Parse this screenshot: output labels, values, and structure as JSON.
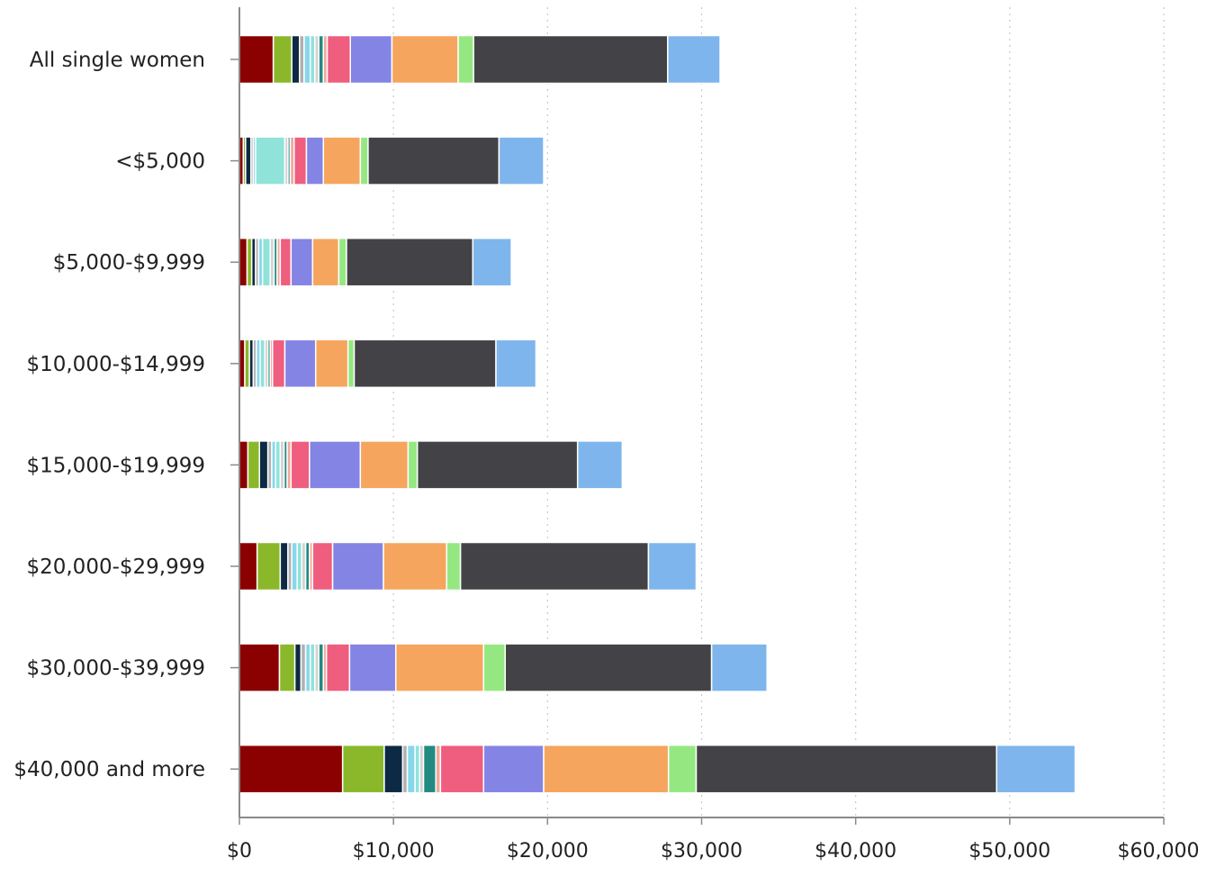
{
  "chart_data": {
    "type": "bar",
    "orientation": "horizontal",
    "stacked": true,
    "title": "",
    "xlabel": "",
    "ylabel": "",
    "xlim": [
      0,
      60000
    ],
    "x_ticks": [
      0,
      10000,
      20000,
      30000,
      40000,
      50000,
      60000
    ],
    "x_tick_labels": [
      "$0",
      "$10,000",
      "$20,000",
      "$30,000",
      "$40,000",
      "$50,000",
      "$60,000"
    ],
    "grid": "vertical dotted",
    "legend": "none",
    "categories": [
      "All single women",
      "<$5,000",
      "$5,000-$9,999",
      "$10,000-$14,999",
      "$15,000-$19,999",
      "$20,000-$29,999",
      "$30,000-$39,999",
      "$40,000 and more"
    ],
    "series": [
      {
        "color": "#8b0000",
        "values": [
          2200,
          250,
          500,
          350,
          550,
          1150,
          2600,
          6700
        ]
      },
      {
        "color": "#8ab82a",
        "values": [
          1200,
          150,
          300,
          300,
          750,
          1500,
          1000,
          2700
        ]
      },
      {
        "color": "#0d2a44",
        "values": [
          500,
          350,
          250,
          250,
          550,
          500,
          400,
          1200
        ]
      },
      {
        "color": "#b0b0b0",
        "values": [
          300,
          150,
          200,
          200,
          250,
          250,
          300,
          300
        ]
      },
      {
        "color": "#87d7ea",
        "values": [
          400,
          150,
          250,
          250,
          250,
          350,
          300,
          500
        ]
      },
      {
        "color": "#8fe3d9",
        "values": [
          300,
          1900,
          500,
          300,
          300,
          300,
          300,
          300
        ]
      },
      {
        "color": "#d2d2d2",
        "values": [
          250,
          200,
          250,
          200,
          250,
          250,
          250,
          250
        ]
      },
      {
        "color": "#238a81",
        "values": [
          300,
          150,
          200,
          150,
          200,
          250,
          300,
          800
        ]
      },
      {
        "color": "#f3a89b",
        "values": [
          250,
          250,
          200,
          150,
          250,
          200,
          200,
          300
        ]
      },
      {
        "color": "#ef5d7f",
        "values": [
          1500,
          800,
          700,
          800,
          1200,
          1300,
          1500,
          2800
        ]
      },
      {
        "color": "#8384e3",
        "values": [
          2700,
          1100,
          1400,
          2000,
          3300,
          3300,
          3000,
          3900
        ]
      },
      {
        "color": "#f5a55d",
        "values": [
          4300,
          2400,
          1700,
          2100,
          3100,
          4100,
          5700,
          8100
        ]
      },
      {
        "color": "#95e881",
        "values": [
          1000,
          500,
          500,
          400,
          600,
          900,
          1400,
          1800
        ]
      },
      {
        "color": "#434347",
        "values": [
          12600,
          8500,
          8200,
          9200,
          10400,
          12200,
          13400,
          19500
        ]
      },
      {
        "color": "#7eb5ec",
        "values": [
          3400,
          2900,
          2500,
          2600,
          2900,
          3100,
          3600,
          5100
        ]
      }
    ]
  }
}
